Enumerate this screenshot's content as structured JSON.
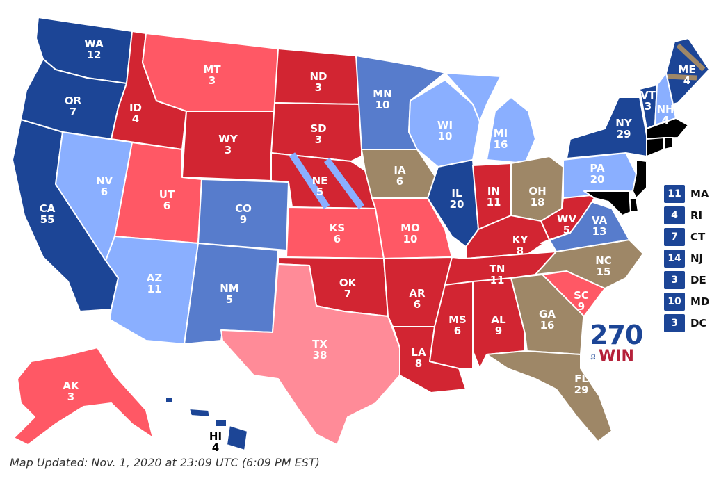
{
  "colors": {
    "safe_dem": "#1c4596",
    "likely_dem": "#577ccc",
    "lean_dem": "#8aafff",
    "toss_up": "#9e8767",
    "lean_rep": "#ff8b98",
    "likely_rep": "#ff5865",
    "safe_rep": "#d22532"
  },
  "states": [
    {
      "abbr": "WA",
      "votes": "12",
      "rating": "safe_dem"
    },
    {
      "abbr": "OR",
      "votes": "7",
      "rating": "safe_dem"
    },
    {
      "abbr": "CA",
      "votes": "55",
      "rating": "safe_dem"
    },
    {
      "abbr": "NV",
      "votes": "6",
      "rating": "lean_dem"
    },
    {
      "abbr": "ID",
      "votes": "4",
      "rating": "safe_rep"
    },
    {
      "abbr": "MT",
      "votes": "3",
      "rating": "likely_rep"
    },
    {
      "abbr": "WY",
      "votes": "3",
      "rating": "safe_rep"
    },
    {
      "abbr": "UT",
      "votes": "6",
      "rating": "likely_rep"
    },
    {
      "abbr": "AZ",
      "votes": "11",
      "rating": "lean_dem"
    },
    {
      "abbr": "CO",
      "votes": "9",
      "rating": "likely_dem"
    },
    {
      "abbr": "NM",
      "votes": "5",
      "rating": "likely_dem"
    },
    {
      "abbr": "ND",
      "votes": "3",
      "rating": "safe_rep"
    },
    {
      "abbr": "SD",
      "votes": "3",
      "rating": "safe_rep"
    },
    {
      "abbr": "NE",
      "votes": "5",
      "rating": "safe_rep"
    },
    {
      "abbr": "KS",
      "votes": "6",
      "rating": "likely_rep"
    },
    {
      "abbr": "OK",
      "votes": "7",
      "rating": "safe_rep"
    },
    {
      "abbr": "TX",
      "votes": "38",
      "rating": "lean_rep"
    },
    {
      "abbr": "MN",
      "votes": "10",
      "rating": "likely_dem"
    },
    {
      "abbr": "IA",
      "votes": "6",
      "rating": "toss_up"
    },
    {
      "abbr": "MO",
      "votes": "10",
      "rating": "likely_rep"
    },
    {
      "abbr": "AR",
      "votes": "6",
      "rating": "safe_rep"
    },
    {
      "abbr": "LA",
      "votes": "8",
      "rating": "safe_rep"
    },
    {
      "abbr": "WI",
      "votes": "10",
      "rating": "lean_dem"
    },
    {
      "abbr": "IL",
      "votes": "20",
      "rating": "safe_dem"
    },
    {
      "abbr": "MI",
      "votes": "16",
      "rating": "lean_dem"
    },
    {
      "abbr": "IN",
      "votes": "11",
      "rating": "safe_rep"
    },
    {
      "abbr": "OH",
      "votes": "18",
      "rating": "toss_up"
    },
    {
      "abbr": "KY",
      "votes": "8",
      "rating": "safe_rep"
    },
    {
      "abbr": "TN",
      "votes": "11",
      "rating": "safe_rep"
    },
    {
      "abbr": "MS",
      "votes": "6",
      "rating": "safe_rep"
    },
    {
      "abbr": "AL",
      "votes": "9",
      "rating": "safe_rep"
    },
    {
      "abbr": "GA",
      "votes": "16",
      "rating": "toss_up"
    },
    {
      "abbr": "FL",
      "votes": "29",
      "rating": "toss_up"
    },
    {
      "abbr": "SC",
      "votes": "9",
      "rating": "likely_rep"
    },
    {
      "abbr": "NC",
      "votes": "15",
      "rating": "toss_up"
    },
    {
      "abbr": "VA",
      "votes": "13",
      "rating": "likely_dem"
    },
    {
      "abbr": "WV",
      "votes": "5",
      "rating": "safe_rep"
    },
    {
      "abbr": "PA",
      "votes": "20",
      "rating": "lean_dem"
    },
    {
      "abbr": "NY",
      "votes": "29",
      "rating": "safe_dem"
    },
    {
      "abbr": "VT",
      "votes": "3",
      "rating": "safe_dem"
    },
    {
      "abbr": "NH",
      "votes": "4",
      "rating": "lean_dem"
    },
    {
      "abbr": "ME",
      "votes": "4",
      "rating": "safe_dem"
    },
    {
      "abbr": "AK",
      "votes": "3",
      "rating": "likely_rep"
    },
    {
      "abbr": "HI",
      "votes": "4",
      "rating": "safe_dem"
    }
  ],
  "small_states": [
    {
      "votes": "11",
      "abbr": "MA"
    },
    {
      "votes": "4",
      "abbr": "RI"
    },
    {
      "votes": "7",
      "abbr": "CT"
    },
    {
      "votes": "14",
      "abbr": "NJ"
    },
    {
      "votes": "3",
      "abbr": "DE"
    },
    {
      "votes": "10",
      "abbr": "MD"
    },
    {
      "votes": "3",
      "abbr": "DC"
    }
  ],
  "logo": {
    "number": "270",
    "to": "to",
    "win": "WIN"
  },
  "footer": "Map Updated: Nov. 1, 2020 at 23:09 UTC (6:09 PM EST)"
}
